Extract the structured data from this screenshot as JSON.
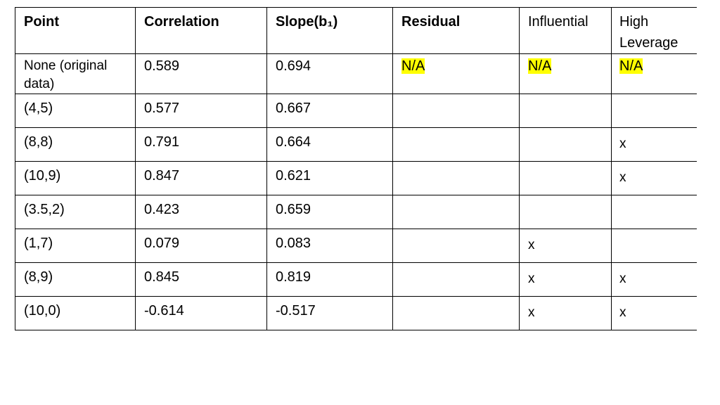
{
  "table": {
    "headers": [
      "Point",
      "Correlation",
      "Slope(b₁)",
      "Residual",
      "Influential",
      "High Leverage"
    ],
    "first_row": {
      "point": "None (original data)",
      "correlation": "0.589",
      "slope": "0.694",
      "residual": "N/A",
      "influential": "N/A",
      "high_leverage": "N/A"
    },
    "rows": [
      {
        "point": "(4,5)",
        "correlation": "0.577",
        "slope": "0.667",
        "residual": "",
        "influential": "",
        "high_leverage": ""
      },
      {
        "point": "(8,8)",
        "correlation": "0.791",
        "slope": "0.664",
        "residual": "",
        "influential": "",
        "high_leverage": "x"
      },
      {
        "point": "(10,9)",
        "correlation": "0.847",
        "slope": "0.621",
        "residual": "",
        "influential": "",
        "high_leverage": "x"
      },
      {
        "point": "(3.5,2)",
        "correlation": "0.423",
        "slope": "0.659",
        "residual": "",
        "influential": "",
        "high_leverage": ""
      },
      {
        "point": "(1,7)",
        "correlation": "0.079",
        "slope": "0.083",
        "residual": "",
        "influential": "x",
        "high_leverage": ""
      },
      {
        "point": "(8,9)",
        "correlation": "0.845",
        "slope": "0.819",
        "residual": "",
        "influential": "x",
        "high_leverage": "x"
      },
      {
        "point": "(10,0)",
        "correlation": "-0.614",
        "slope": "-0.517",
        "residual": "",
        "influential": "x",
        "high_leverage": "x"
      }
    ],
    "highlight_color": "#ffff00"
  }
}
